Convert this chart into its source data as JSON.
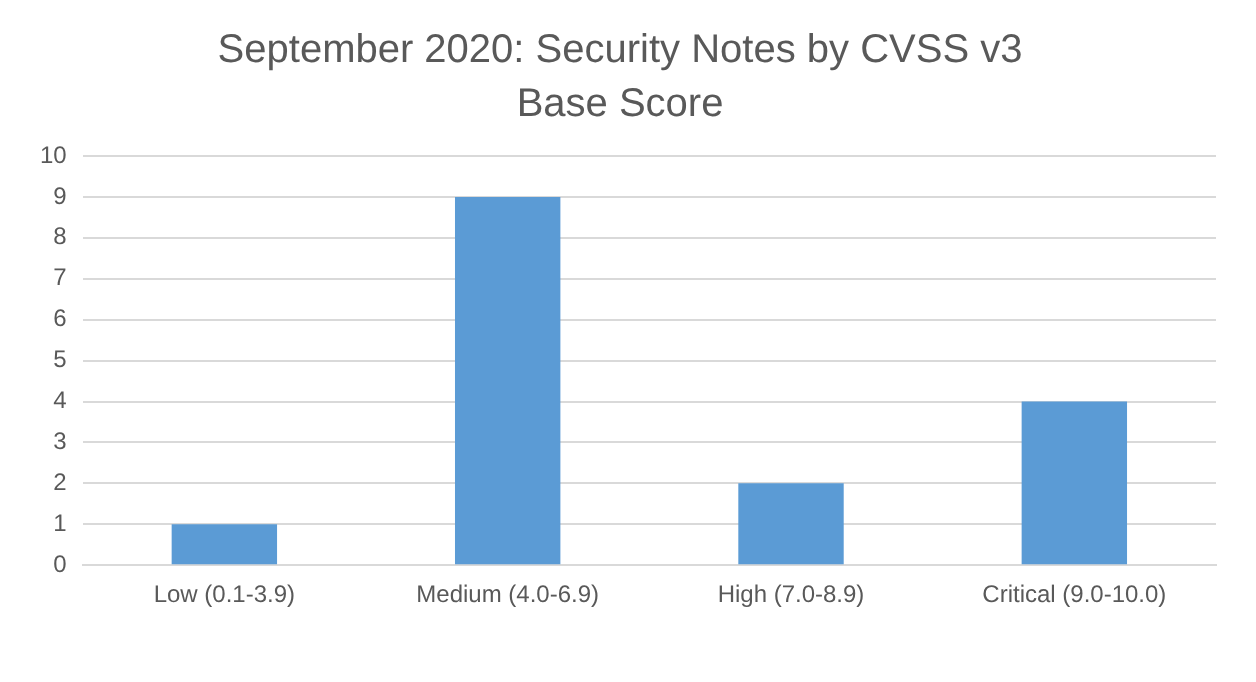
{
  "chart_data": {
    "type": "bar",
    "title": "September 2020: Security Notes by CVSS v3 Base Score",
    "categories": [
      "Low (0.1-3.9)",
      "Medium (4.0-6.9)",
      "High (7.0-8.9)",
      "Critical (9.0-10.0)"
    ],
    "values": [
      1,
      9,
      2,
      4
    ],
    "color": "#5b9bd5",
    "ylim": [
      0,
      10
    ],
    "yticks": [
      0,
      1,
      2,
      3,
      4,
      5,
      6,
      7,
      8,
      9,
      10
    ],
    "grid": "y",
    "legend": false
  }
}
